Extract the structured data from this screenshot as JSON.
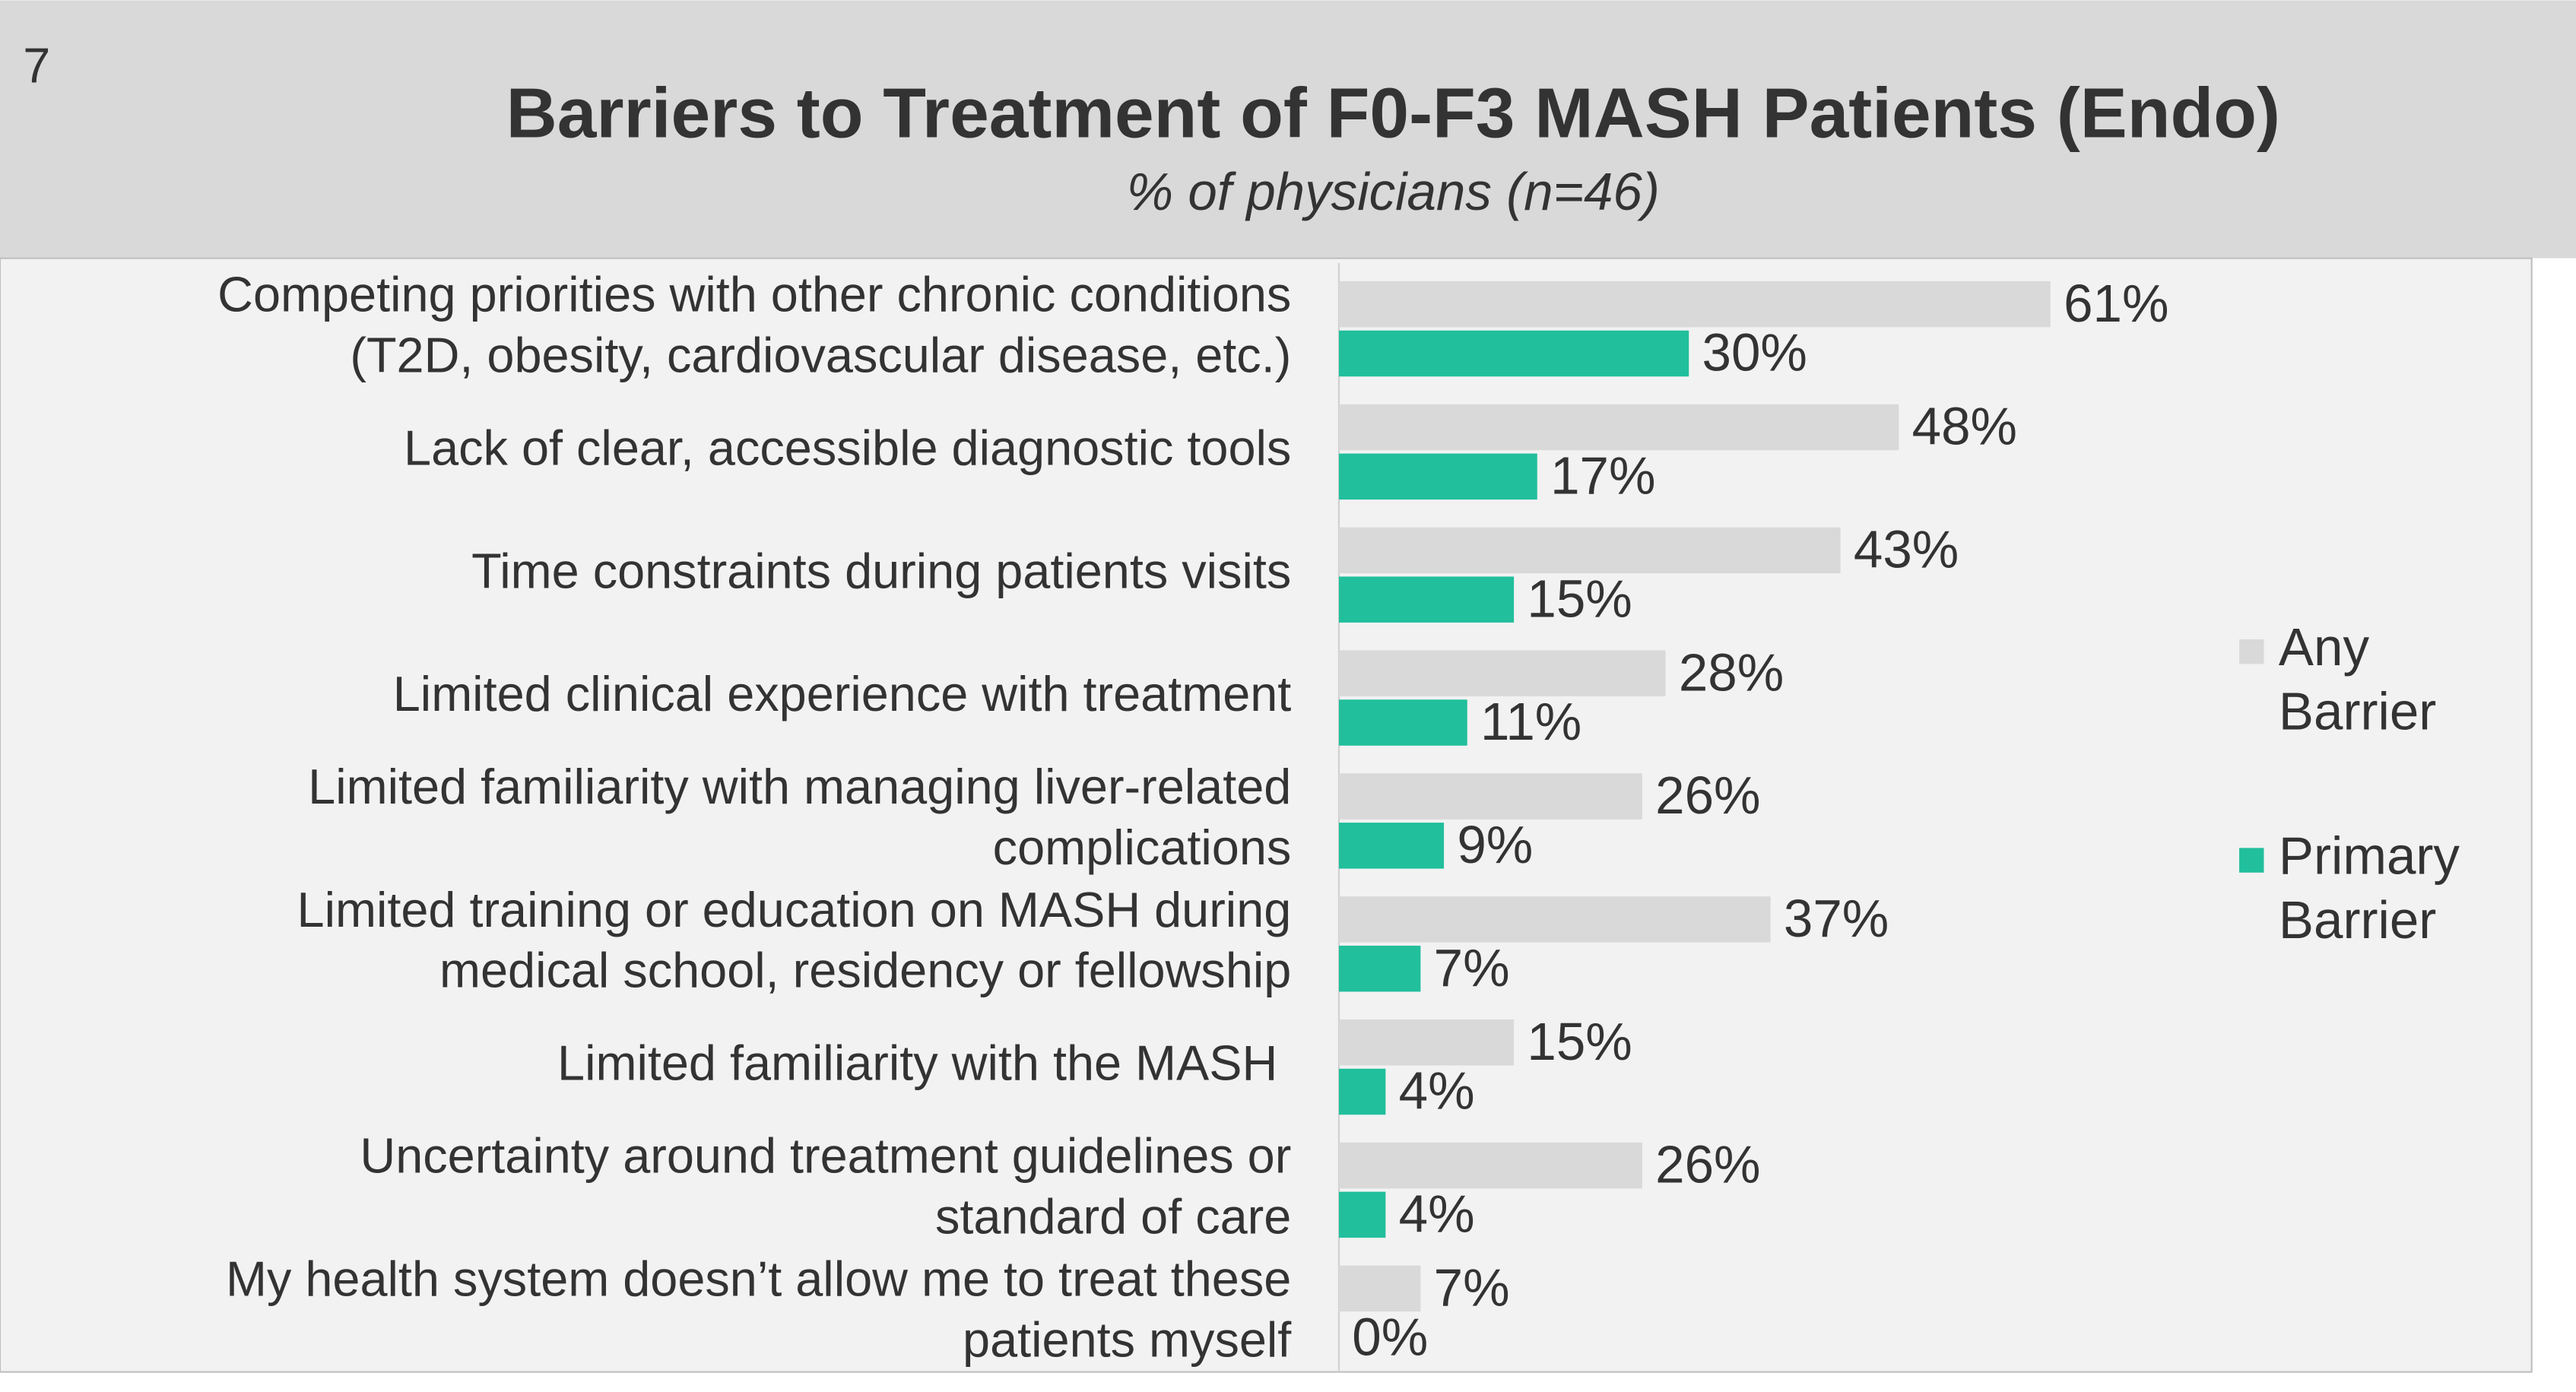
{
  "page_number": "7",
  "chart_data": {
    "type": "hbar",
    "title": "Barriers to Treatment of F0-F3 MASH Patients (Endo)",
    "subtitle": "% of physicians (n=46)",
    "categories": [
      "Competing priorities with other chronic conditions\n(T2D, obesity, cardiovascular disease, etc.)",
      "Lack of clear, accessible diagnostic tools",
      "Time constraints during patients visits",
      "Limited clinical experience with treatment",
      "Limited familiarity with managing liver-related\ncomplications",
      "Limited training or education on MASH during\nmedical school, residency or fellowship",
      "Limited familiarity with the MASH ",
      "Uncertainty around treatment guidelines or\nstandard of care",
      "My health system doesn’t allow me to treat these\npatients myself"
    ],
    "series": [
      {
        "name": "Any Barrier",
        "color": "#d9d9d9",
        "values": [
          61,
          48,
          43,
          28,
          26,
          37,
          15,
          26,
          7
        ],
        "value_labels": [
          "61%",
          "48%",
          "43%",
          "28%",
          "26%",
          "37%",
          "15%",
          "26%",
          "7%"
        ]
      },
      {
        "name": "Primary Barrier",
        "color": "#21bf9c",
        "values": [
          30,
          17,
          15,
          11,
          9,
          7,
          4,
          4,
          0
        ],
        "value_labels": [
          "30%",
          "17%",
          "15%",
          "11%",
          "9%",
          "7%",
          "4%",
          "4%",
          "0%"
        ]
      }
    ],
    "xlim": [
      0,
      100
    ],
    "legend": "right"
  }
}
